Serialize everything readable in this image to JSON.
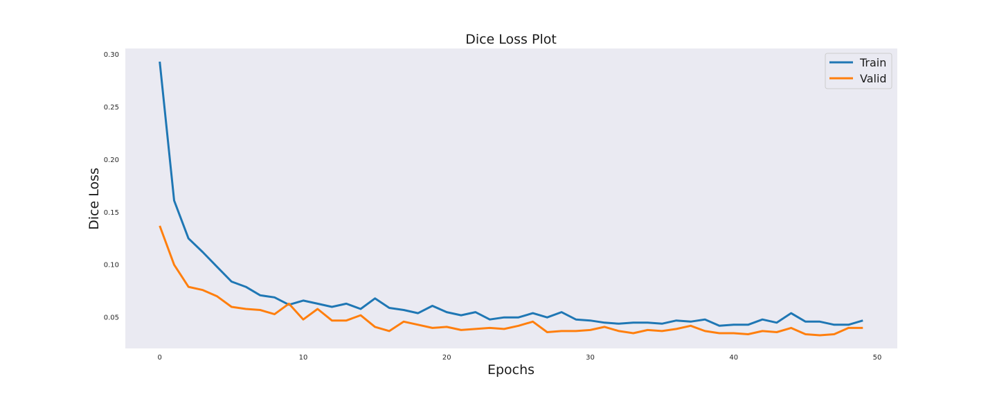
{
  "chart_data": {
    "type": "line",
    "title": "Dice Loss Plot",
    "xlabel": "Epochs",
    "ylabel": "Dice Loss",
    "xlim": [
      -2.4,
      51.4
    ],
    "ylim": [
      0.0205,
      0.3055
    ],
    "xticks": [
      0,
      10,
      20,
      30,
      40,
      50
    ],
    "xtick_labels": [
      "0",
      "10",
      "20",
      "30",
      "40",
      "50"
    ],
    "yticks": [
      0.05,
      0.1,
      0.15,
      0.2,
      0.25,
      0.3
    ],
    "ytick_labels": [
      "0.05",
      "0.10",
      "0.15",
      "0.20",
      "0.25",
      "0.30"
    ],
    "grid": false,
    "legend_position": "top-right",
    "x": [
      0,
      1,
      2,
      3,
      4,
      5,
      6,
      7,
      8,
      9,
      10,
      11,
      12,
      13,
      14,
      15,
      16,
      17,
      18,
      19,
      20,
      21,
      22,
      23,
      24,
      25,
      26,
      27,
      28,
      29,
      30,
      31,
      32,
      33,
      34,
      35,
      36,
      37,
      38,
      39,
      40,
      41,
      42,
      43,
      44,
      45,
      46,
      47,
      48,
      49
    ],
    "series": [
      {
        "name": "Train",
        "color": "#1f77b4",
        "values": [
          0.293,
          0.161,
          0.125,
          0.112,
          0.098,
          0.084,
          0.079,
          0.071,
          0.069,
          0.062,
          0.066,
          0.063,
          0.06,
          0.063,
          0.058,
          0.068,
          0.059,
          0.057,
          0.054,
          0.061,
          0.055,
          0.052,
          0.055,
          0.048,
          0.05,
          0.05,
          0.054,
          0.05,
          0.055,
          0.048,
          0.047,
          0.045,
          0.044,
          0.045,
          0.045,
          0.044,
          0.047,
          0.046,
          0.048,
          0.042,
          0.043,
          0.043,
          0.048,
          0.045,
          0.054,
          0.046,
          0.046,
          0.043,
          0.043,
          0.047
        ]
      },
      {
        "name": "Valid",
        "color": "#ff7f0e",
        "values": [
          0.137,
          0.1,
          0.079,
          0.076,
          0.07,
          0.06,
          0.058,
          0.057,
          0.053,
          0.063,
          0.048,
          0.058,
          0.047,
          0.047,
          0.052,
          0.041,
          0.037,
          0.046,
          0.043,
          0.04,
          0.041,
          0.038,
          0.039,
          0.04,
          0.039,
          0.042,
          0.046,
          0.036,
          0.037,
          0.037,
          0.038,
          0.041,
          0.037,
          0.035,
          0.038,
          0.037,
          0.039,
          0.042,
          0.037,
          0.035,
          0.035,
          0.034,
          0.037,
          0.036,
          0.04,
          0.034,
          0.033,
          0.034,
          0.04,
          0.04
        ]
      }
    ]
  },
  "colors": {
    "plot_background": "#eaeaf2",
    "figure_background": "#ffffff"
  }
}
